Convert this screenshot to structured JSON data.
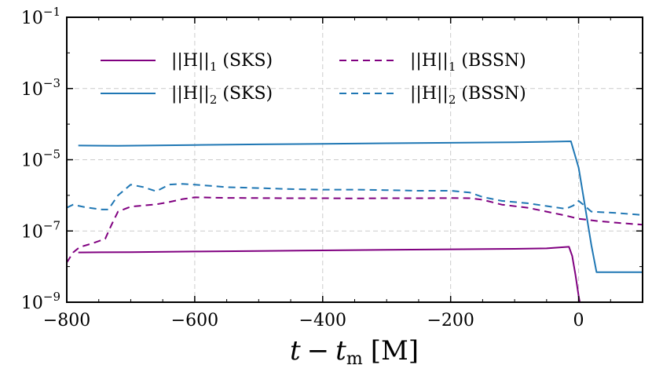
{
  "chart_data": {
    "type": "line",
    "title": "",
    "xlabel": "t − t_m [M]",
    "xlabel_parts": {
      "t": "t",
      "minus": "−",
      "t2": "t",
      "sub": "m",
      "unit": "[M]"
    },
    "ylabel": "",
    "xlim": [
      -800,
      100
    ],
    "ylim": [
      1e-09,
      0.1
    ],
    "yscale": "log",
    "grid": true,
    "legend_position": "top",
    "x_ticks": [
      {
        "value": -800,
        "label": "−800"
      },
      {
        "value": -600,
        "label": "−600"
      },
      {
        "value": -400,
        "label": "−400"
      },
      {
        "value": -200,
        "label": "−200"
      },
      {
        "value": 0,
        "label": "0"
      }
    ],
    "y_ticks": [
      {
        "value": 1e-09,
        "base": "10",
        "exp": "−9"
      },
      {
        "value": 1e-07,
        "base": "10",
        "exp": "−7"
      },
      {
        "value": 1e-05,
        "base": "10",
        "exp": "−5"
      },
      {
        "value": 0.001,
        "base": "10",
        "exp": "−3"
      },
      {
        "value": 0.1,
        "base": "10",
        "exp": "−1"
      }
    ],
    "series": [
      {
        "name": "||H||1 (SKS)",
        "label": {
          "norm": "||H||",
          "sub": "1",
          "rest": " (SKS)"
        },
        "color": "#800080",
        "dash": "solid",
        "x": [
          -782,
          -700,
          -600,
          -500,
          -400,
          -300,
          -200,
          -100,
          -50,
          -15,
          -10,
          -5,
          0,
          5
        ],
        "y": [
          2.5e-08,
          2.55e-08,
          2.65e-08,
          2.75e-08,
          2.85e-08,
          2.95e-08,
          3.05e-08,
          3.15e-08,
          3.25e-08,
          3.6e-08,
          2e-08,
          6e-09,
          1.5e-09,
          5e-10
        ]
      },
      {
        "name": "||H||2 (SKS)",
        "label": {
          "norm": "||H||",
          "sub": "2",
          "rest": " (SKS)"
        },
        "color": "#1f77b4",
        "dash": "solid",
        "x": [
          -782,
          -720,
          -600,
          -500,
          -400,
          -300,
          -200,
          -100,
          -50,
          -12,
          0,
          10,
          20,
          28,
          100
        ],
        "y": [
          2.5e-05,
          2.45e-05,
          2.6e-05,
          2.7e-05,
          2.8e-05,
          2.9e-05,
          3e-05,
          3.1e-05,
          3.2e-05,
          3.3e-05,
          6e-06,
          5e-07,
          4e-08,
          7e-09,
          7e-09
        ]
      },
      {
        "name": "||H||1 (BSSN)",
        "label": {
          "norm": "||H||",
          "sub": "1",
          "rest": " (BSSN)"
        },
        "color": "#800080",
        "dash": "dashed",
        "x": [
          -800,
          -790,
          -780,
          -760,
          -740,
          -730,
          -720,
          -700,
          -680,
          -660,
          -640,
          -620,
          -600,
          -580,
          -550,
          -500,
          -450,
          -400,
          -350,
          -300,
          -250,
          -200,
          -170,
          -150,
          -120,
          -80,
          -50,
          -20,
          0,
          30,
          60,
          100
        ],
        "y": [
          1.3e-08,
          2.5e-08,
          3.5e-08,
          4.5e-08,
          6e-08,
          1.5e-07,
          3.5e-07,
          4.8e-07,
          5.2e-07,
          5.6e-07,
          6.5e-07,
          7.8e-07,
          8.8e-07,
          8.7e-07,
          8.5e-07,
          8.4e-07,
          8.3e-07,
          8.3e-07,
          8.2e-07,
          8.3e-07,
          8.3e-07,
          8.4e-07,
          8.3e-07,
          7.5e-07,
          5.5e-07,
          4.5e-07,
          3.5e-07,
          2.7e-07,
          2.2e-07,
          1.9e-07,
          1.7e-07,
          1.5e-07
        ]
      },
      {
        "name": "||H||2 (BSSN)",
        "label": {
          "norm": "||H||",
          "sub": "2",
          "rest": " (BSSN)"
        },
        "color": "#1f77b4",
        "dash": "dashed",
        "x": [
          -800,
          -790,
          -770,
          -745,
          -735,
          -720,
          -700,
          -680,
          -660,
          -640,
          -620,
          -600,
          -550,
          -500,
          -450,
          -400,
          -350,
          -300,
          -250,
          -200,
          -170,
          -150,
          -120,
          -80,
          -50,
          -20,
          -8,
          0,
          10,
          20,
          60,
          100
        ],
        "y": [
          4.5e-07,
          5.5e-07,
          4.6e-07,
          4e-07,
          4e-07,
          1e-06,
          2e-06,
          1.7e-06,
          1.3e-06,
          2e-06,
          2.1e-06,
          2e-06,
          1.7e-06,
          1.6e-06,
          1.5e-06,
          1.45e-06,
          1.45e-06,
          1.4e-06,
          1.35e-06,
          1.35e-06,
          1.2e-06,
          9e-07,
          7e-07,
          6e-07,
          5e-07,
          4.2e-07,
          5.2e-07,
          7e-07,
          5e-07,
          3.5e-07,
          3.2e-07,
          2.8e-07
        ]
      }
    ]
  }
}
